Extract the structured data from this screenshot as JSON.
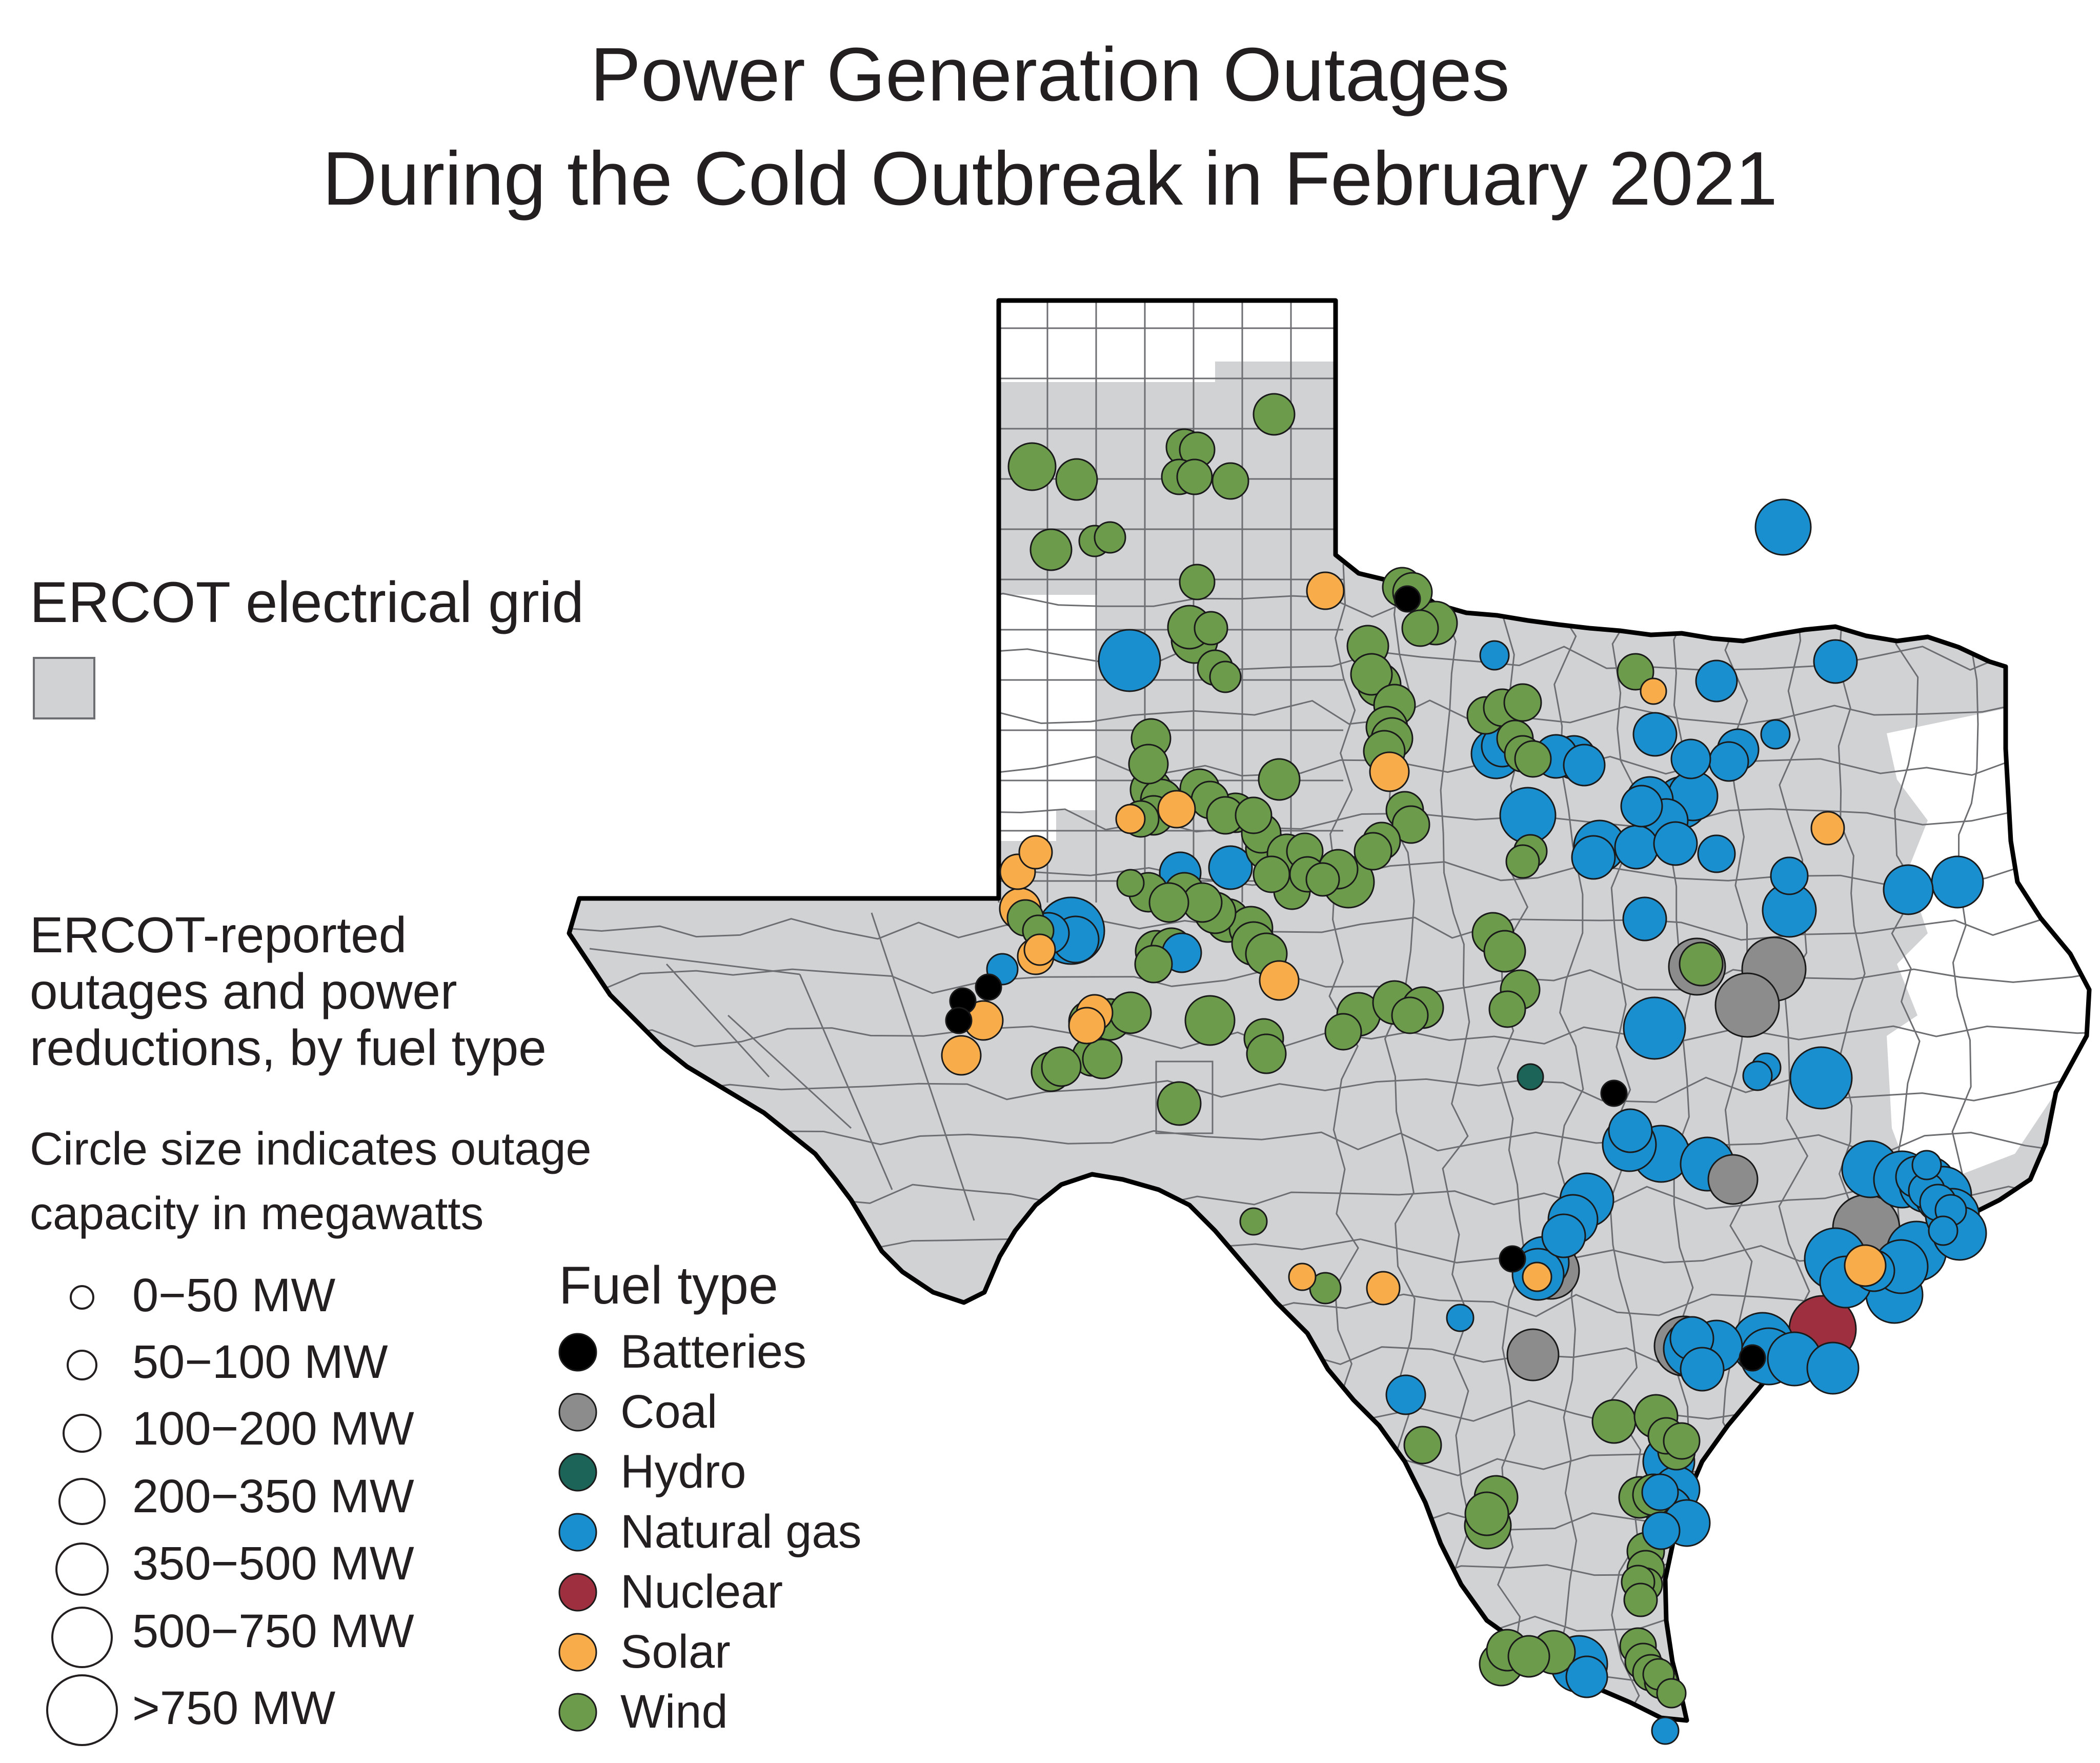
{
  "title": {
    "line1": "Power Generation Outages",
    "line2": "During the Cold Outbreak in February 2021"
  },
  "grid_legend": {
    "label": "ERCOT electrical grid",
    "swatch_color": "#d1d2d4"
  },
  "outage_legend": {
    "heading_lines": [
      "ERCOT-reported",
      "outages and power",
      "reductions, by fuel type"
    ],
    "note_lines": [
      "Circle size indicates outage",
      "capacity in megawatts"
    ],
    "size_classes": [
      {
        "label": "0−50 MW"
      },
      {
        "label": "50−100 MW"
      },
      {
        "label": "100−200 MW"
      },
      {
        "label": "200−350 MW"
      },
      {
        "label": "350−500 MW"
      },
      {
        "label": "500−750 MW"
      },
      {
        "label": ">750 MW"
      }
    ]
  },
  "fuel_legend": {
    "heading": "Fuel type",
    "items": [
      {
        "label": "Batteries",
        "color": "#000000",
        "key": "batteries"
      },
      {
        "label": "Coal",
        "color": "#8c8c8c",
        "key": "coal"
      },
      {
        "label": "Hydro",
        "color": "#1b6457",
        "key": "hydro"
      },
      {
        "label": "Natural gas",
        "color": "#1a8fcf",
        "key": "gas"
      },
      {
        "label": "Nuclear",
        "color": "#9e2f3f",
        "key": "nuclear"
      },
      {
        "label": "Solar",
        "color": "#f9ad4a",
        "key": "solar"
      },
      {
        "label": "Wind",
        "color": "#6b9b4b",
        "key": "wind"
      }
    ]
  },
  "map_colors": {
    "ercot_fill": "#d1d2d4",
    "non_ercot_fill": "#ffffff",
    "county_line": "#6d6e71",
    "state_outline": "#000000",
    "marker_stroke": "#1a1a1a"
  }
}
